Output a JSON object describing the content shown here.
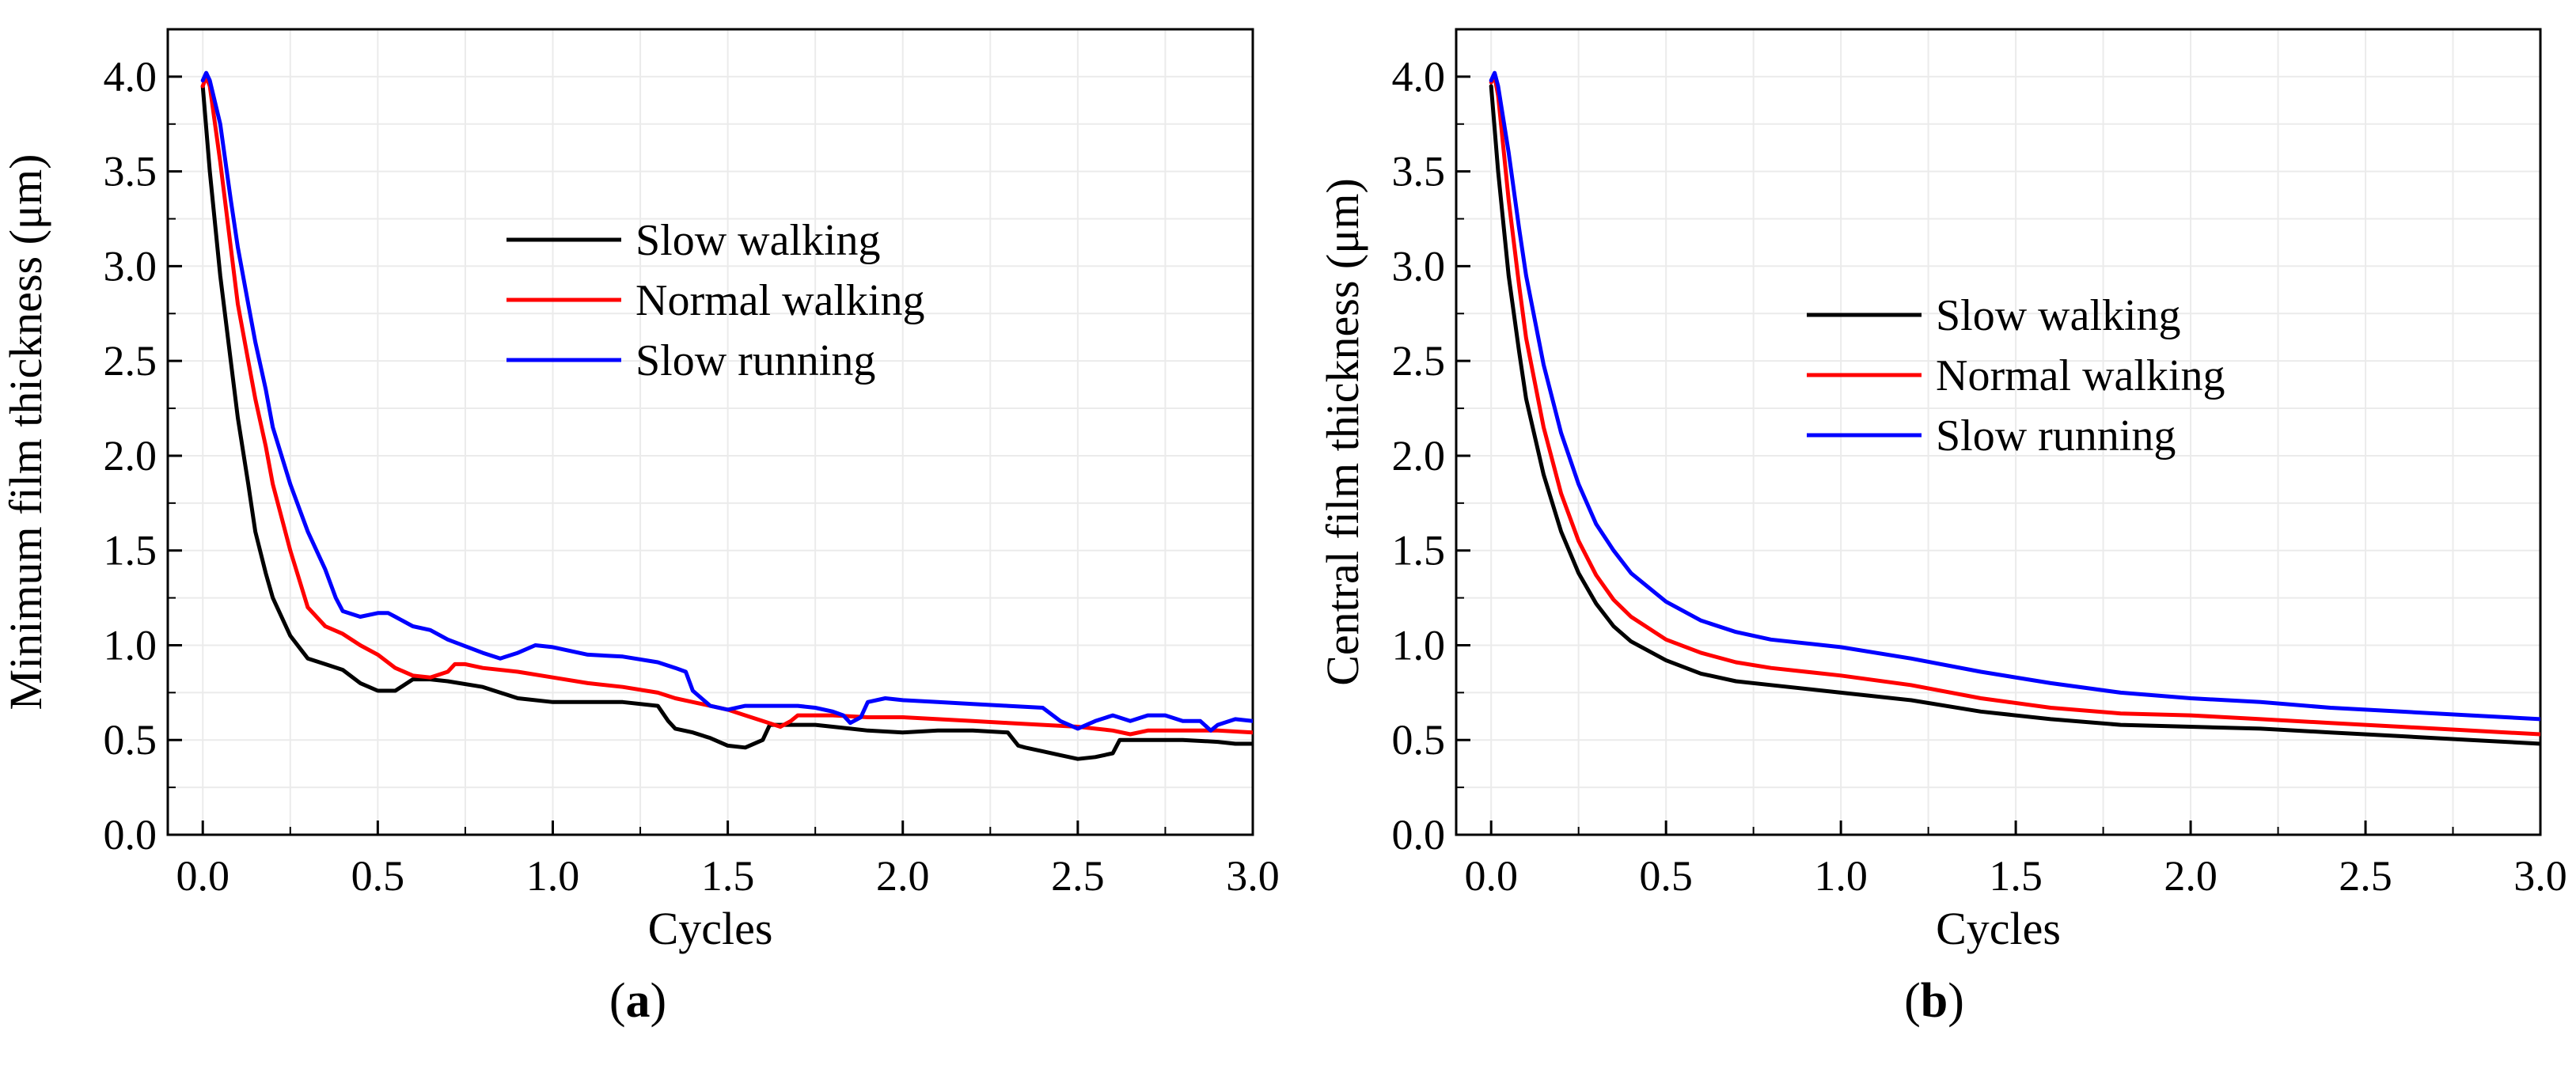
{
  "chart_data": [
    {
      "type": "line",
      "panel_label": "a",
      "xlabel": "Cycles",
      "ylabel": "Minimum film thickness (μm)",
      "xlim": [
        -0.1,
        3.0
      ],
      "ylim": [
        0.0,
        4.25
      ],
      "xticks": [
        "0.0",
        "0.5",
        "1.0",
        "1.5",
        "2.0",
        "2.5",
        "3.0"
      ],
      "yticks": [
        "0.0",
        "0.5",
        "1.0",
        "1.5",
        "2.0",
        "2.5",
        "3.0",
        "3.5",
        "4.0"
      ],
      "grid": true,
      "legend_position": "upper-center",
      "series": [
        {
          "name": "Slow walking",
          "color": "#000000",
          "x": [
            0.0,
            0.02,
            0.05,
            0.08,
            0.1,
            0.13,
            0.15,
            0.18,
            0.2,
            0.25,
            0.3,
            0.35,
            0.4,
            0.45,
            0.5,
            0.55,
            0.6,
            0.65,
            0.7,
            0.8,
            0.9,
            1.0,
            1.1,
            1.2,
            1.3,
            1.33,
            1.35,
            1.4,
            1.45,
            1.5,
            1.55,
            1.6,
            1.62,
            1.65,
            1.7,
            1.75,
            1.8,
            1.85,
            1.9,
            2.0,
            2.1,
            2.2,
            2.3,
            2.33,
            2.35,
            2.4,
            2.45,
            2.5,
            2.55,
            2.6,
            2.62,
            2.65,
            2.7,
            2.8,
            2.9,
            2.95,
            3.0
          ],
          "y": [
            3.95,
            3.5,
            2.95,
            2.5,
            2.2,
            1.85,
            1.6,
            1.38,
            1.25,
            1.05,
            0.93,
            0.9,
            0.87,
            0.8,
            0.76,
            0.76,
            0.82,
            0.82,
            0.81,
            0.78,
            0.72,
            0.7,
            0.7,
            0.7,
            0.68,
            0.6,
            0.56,
            0.54,
            0.51,
            0.47,
            0.46,
            0.5,
            0.58,
            0.58,
            0.58,
            0.58,
            0.57,
            0.56,
            0.55,
            0.54,
            0.55,
            0.55,
            0.54,
            0.47,
            0.46,
            0.44,
            0.42,
            0.4,
            0.41,
            0.43,
            0.5,
            0.5,
            0.5,
            0.5,
            0.49,
            0.48,
            0.48
          ]
        },
        {
          "name": "Normal walking",
          "color": "#ff0000",
          "x": [
            0.0,
            0.01,
            0.02,
            0.05,
            0.08,
            0.1,
            0.13,
            0.15,
            0.18,
            0.2,
            0.25,
            0.3,
            0.35,
            0.4,
            0.45,
            0.5,
            0.55,
            0.6,
            0.65,
            0.7,
            0.72,
            0.75,
            0.8,
            0.9,
            1.0,
            1.1,
            1.2,
            1.3,
            1.35,
            1.4,
            1.5,
            1.55,
            1.6,
            1.65,
            1.68,
            1.7,
            1.72,
            1.75,
            1.8,
            1.9,
            2.0,
            2.1,
            2.2,
            2.3,
            2.4,
            2.5,
            2.6,
            2.65,
            2.7,
            2.8,
            2.9,
            3.0
          ],
          "y": [
            3.95,
            4.0,
            3.95,
            3.55,
            3.1,
            2.8,
            2.5,
            2.3,
            2.05,
            1.85,
            1.5,
            1.2,
            1.1,
            1.06,
            1.0,
            0.95,
            0.88,
            0.84,
            0.83,
            0.86,
            0.9,
            0.9,
            0.88,
            0.86,
            0.83,
            0.8,
            0.78,
            0.75,
            0.72,
            0.7,
            0.66,
            0.63,
            0.6,
            0.57,
            0.6,
            0.63,
            0.63,
            0.63,
            0.63,
            0.62,
            0.62,
            0.61,
            0.6,
            0.59,
            0.58,
            0.57,
            0.55,
            0.53,
            0.55,
            0.55,
            0.55,
            0.54
          ]
        },
        {
          "name": "Slow running",
          "color": "#0000ff",
          "x": [
            0.0,
            0.01,
            0.02,
            0.05,
            0.08,
            0.1,
            0.13,
            0.15,
            0.18,
            0.2,
            0.25,
            0.3,
            0.35,
            0.38,
            0.4,
            0.45,
            0.5,
            0.53,
            0.55,
            0.6,
            0.65,
            0.7,
            0.8,
            0.85,
            0.9,
            0.95,
            1.0,
            1.05,
            1.1,
            1.2,
            1.3,
            1.35,
            1.38,
            1.4,
            1.45,
            1.5,
            1.55,
            1.6,
            1.65,
            1.7,
            1.75,
            1.8,
            1.83,
            1.85,
            1.88,
            1.9,
            1.95,
            2.0,
            2.1,
            2.2,
            2.3,
            2.4,
            2.45,
            2.5,
            2.55,
            2.6,
            2.65,
            2.7,
            2.75,
            2.8,
            2.85,
            2.88,
            2.9,
            2.95,
            3.0
          ],
          "y": [
            3.98,
            4.02,
            3.98,
            3.75,
            3.35,
            3.1,
            2.8,
            2.6,
            2.35,
            2.15,
            1.85,
            1.6,
            1.4,
            1.25,
            1.18,
            1.15,
            1.17,
            1.17,
            1.15,
            1.1,
            1.08,
            1.03,
            0.96,
            0.93,
            0.96,
            1.0,
            0.99,
            0.97,
            0.95,
            0.94,
            0.91,
            0.88,
            0.86,
            0.76,
            0.68,
            0.66,
            0.68,
            0.68,
            0.68,
            0.68,
            0.67,
            0.65,
            0.63,
            0.59,
            0.62,
            0.7,
            0.72,
            0.71,
            0.7,
            0.69,
            0.68,
            0.67,
            0.6,
            0.56,
            0.6,
            0.63,
            0.6,
            0.63,
            0.63,
            0.6,
            0.6,
            0.55,
            0.58,
            0.61,
            0.6
          ]
        }
      ]
    },
    {
      "type": "line",
      "panel_label": "b",
      "xlabel": "Cycles",
      "ylabel": "Central film thickness (μm)",
      "xlim": [
        -0.1,
        3.0
      ],
      "ylim": [
        0.0,
        4.25
      ],
      "xticks": [
        "0.0",
        "0.5",
        "1.0",
        "1.5",
        "2.0",
        "2.5",
        "3.0"
      ],
      "yticks": [
        "0.0",
        "0.5",
        "1.0",
        "1.5",
        "2.0",
        "2.5",
        "3.0",
        "3.5",
        "4.0"
      ],
      "grid": true,
      "legend_position": "center",
      "series": [
        {
          "name": "Slow walking",
          "color": "#000000",
          "x": [
            0.0,
            0.02,
            0.05,
            0.08,
            0.1,
            0.15,
            0.2,
            0.25,
            0.3,
            0.35,
            0.4,
            0.5,
            0.6,
            0.7,
            0.8,
            1.0,
            1.2,
            1.4,
            1.6,
            1.8,
            2.0,
            2.2,
            2.4,
            2.6,
            2.8,
            3.0
          ],
          "y": [
            3.95,
            3.5,
            2.95,
            2.55,
            2.3,
            1.9,
            1.6,
            1.38,
            1.22,
            1.1,
            1.02,
            0.92,
            0.85,
            0.81,
            0.79,
            0.75,
            0.71,
            0.65,
            0.61,
            0.58,
            0.57,
            0.56,
            0.54,
            0.52,
            0.5,
            0.48
          ]
        },
        {
          "name": "Normal walking",
          "color": "#ff0000",
          "x": [
            0.0,
            0.01,
            0.02,
            0.05,
            0.08,
            0.1,
            0.15,
            0.2,
            0.25,
            0.3,
            0.35,
            0.4,
            0.5,
            0.6,
            0.7,
            0.8,
            1.0,
            1.2,
            1.4,
            1.6,
            1.8,
            2.0,
            2.2,
            2.4,
            2.6,
            2.8,
            3.0
          ],
          "y": [
            3.97,
            4.0,
            3.9,
            3.35,
            2.9,
            2.62,
            2.15,
            1.8,
            1.55,
            1.37,
            1.24,
            1.15,
            1.03,
            0.96,
            0.91,
            0.88,
            0.84,
            0.79,
            0.72,
            0.67,
            0.64,
            0.63,
            0.61,
            0.59,
            0.57,
            0.55,
            0.53
          ]
        },
        {
          "name": "Slow running",
          "color": "#0000ff",
          "x": [
            0.0,
            0.01,
            0.02,
            0.05,
            0.08,
            0.1,
            0.15,
            0.2,
            0.25,
            0.3,
            0.35,
            0.4,
            0.5,
            0.6,
            0.7,
            0.8,
            1.0,
            1.2,
            1.4,
            1.6,
            1.8,
            2.0,
            2.2,
            2.4,
            2.6,
            2.8,
            3.0
          ],
          "y": [
            3.98,
            4.02,
            3.95,
            3.6,
            3.2,
            2.95,
            2.48,
            2.12,
            1.85,
            1.64,
            1.5,
            1.38,
            1.23,
            1.13,
            1.07,
            1.03,
            0.99,
            0.93,
            0.86,
            0.8,
            0.75,
            0.72,
            0.7,
            0.67,
            0.65,
            0.63,
            0.61
          ]
        }
      ]
    }
  ]
}
